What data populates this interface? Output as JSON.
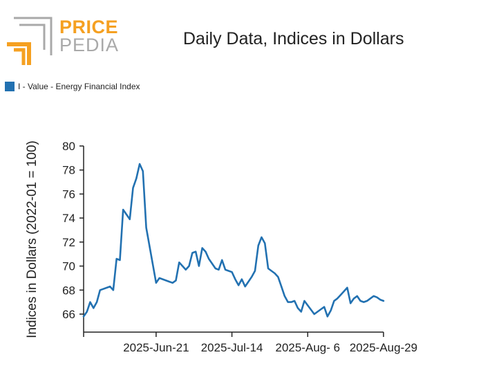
{
  "brand": {
    "word1": "PRICE",
    "word2": "PEDIA",
    "colors": {
      "orange": "#f5a021",
      "gray": "#a9a9a9"
    }
  },
  "legend": {
    "label": "I - Value - Energy Financial Index",
    "color": "#2271b1"
  },
  "chart_data": {
    "type": "line",
    "title": "Daily Data, Indices in Dollars",
    "xlabel": "",
    "ylabel": "Indices in Dollars (2022-01 = 100)",
    "ylim": [
      64.5,
      80
    ],
    "yticks": [
      66,
      68,
      70,
      72,
      74,
      76,
      78,
      80
    ],
    "xtick_labels": [
      "2025-Jun-21",
      "2025-Jul-14",
      "2025-Aug- 6",
      "2025-Aug-29"
    ],
    "xtick_positions": [
      22,
      45,
      68,
      91
    ],
    "xlim": [
      0,
      91
    ],
    "grid": false,
    "legend_position": "top-left",
    "series": [
      {
        "name": "I - Value - Energy Financial Index",
        "color": "#2271b1",
        "x": [
          0,
          1,
          2,
          3,
          4,
          5,
          8,
          9,
          10,
          11,
          12,
          14,
          15,
          16,
          17,
          18,
          19,
          22,
          23,
          24,
          26,
          27,
          28,
          29,
          30,
          31,
          32,
          33,
          34,
          35,
          36,
          37,
          38,
          40,
          41,
          42,
          43,
          44,
          45,
          46,
          47,
          48,
          49,
          50,
          51,
          52,
          53,
          54,
          55,
          56,
          57,
          58,
          59,
          60,
          61,
          62,
          63,
          64,
          65,
          66,
          67,
          70,
          71,
          72,
          73,
          74,
          75,
          76,
          77,
          78,
          79,
          80,
          81,
          82,
          83,
          84,
          85,
          86,
          87,
          88,
          89,
          90,
          91
        ],
        "values": [
          65.8,
          66.2,
          67.0,
          66.5,
          67.0,
          68.0,
          68.3,
          68.0,
          70.6,
          70.5,
          74.7,
          73.9,
          76.5,
          77.3,
          78.5,
          77.9,
          73.2,
          68.6,
          69.0,
          68.9,
          68.7,
          68.6,
          68.8,
          70.3,
          70.0,
          69.7,
          70.0,
          71.1,
          71.2,
          70.0,
          71.5,
          71.2,
          70.6,
          69.8,
          69.7,
          70.5,
          69.7,
          69.6,
          69.5,
          68.9,
          68.4,
          68.9,
          68.3,
          68.7,
          69.1,
          69.6,
          71.7,
          72.4,
          71.9,
          69.8,
          69.6,
          69.4,
          69.1,
          68.3,
          67.5,
          67.0,
          67.0,
          67.1,
          66.5,
          66.2,
          67.1,
          66.0,
          66.2,
          66.4,
          66.6,
          65.8,
          66.3,
          67.1,
          67.3,
          67.6,
          67.9,
          68.2,
          66.9,
          67.3,
          67.5,
          67.1,
          67.0,
          67.1,
          67.3,
          67.5,
          67.4,
          67.2,
          67.1
        ]
      }
    ]
  }
}
